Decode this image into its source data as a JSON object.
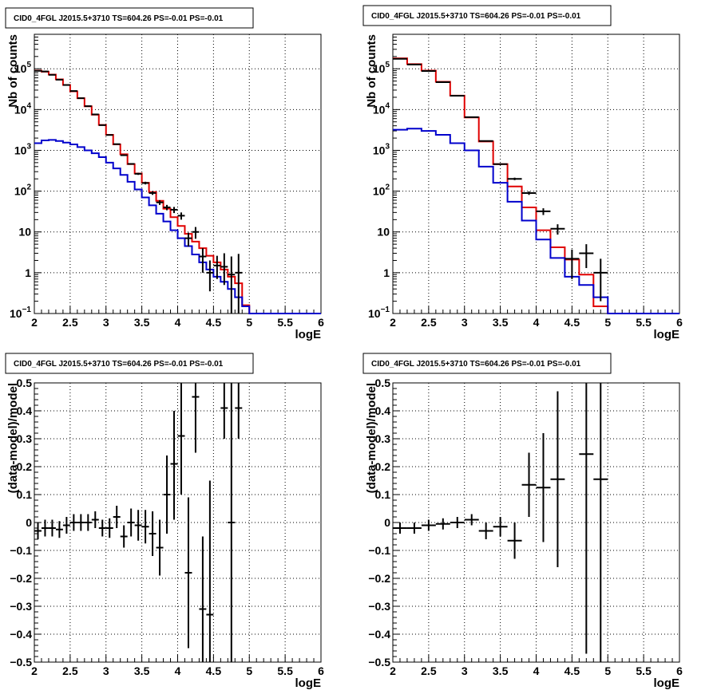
{
  "colors": {
    "data": "#000000",
    "model_total": "#e00000",
    "model_component": "#0000cc",
    "grid": "#000000"
  },
  "chart_data": [
    {
      "type": "line",
      "panel": "top-left",
      "title": "CID0_4FGL J2015.5+3710 TS=604.26 PS=-0.01 PS=-0.01",
      "xlabel": "logE",
      "ylabel": "Nb of counts",
      "xlim": [
        2,
        6
      ],
      "ylim": [
        0.1,
        700000
      ],
      "yscale": "log",
      "grid": true,
      "xticks": [
        "2",
        "2.5",
        "3",
        "3.5",
        "4",
        "4.5",
        "5",
        "5.5",
        "6"
      ],
      "yticks": [
        {
          "v": 0.1,
          "mant": "10",
          "exp": "−1"
        },
        {
          "v": 1,
          "mant": "1",
          "exp": ""
        },
        {
          "v": 10,
          "mant": "10",
          "exp": ""
        },
        {
          "v": 100,
          "mant": "10",
          "exp": "2"
        },
        {
          "v": 1000,
          "mant": "10",
          "exp": "3"
        },
        {
          "v": 10000,
          "mant": "10",
          "exp": "4"
        },
        {
          "v": 100000,
          "mant": "10",
          "exp": "5"
        }
      ],
      "bin_edges": [
        2.0,
        2.1,
        2.2,
        2.3,
        2.4,
        2.5,
        2.6,
        2.7,
        2.8,
        2.9,
        3.0,
        3.1,
        3.2,
        3.3,
        3.4,
        3.5,
        3.6,
        3.7,
        3.8,
        3.9,
        4.0,
        4.1,
        4.2,
        4.3,
        4.4,
        4.5,
        4.6,
        4.7,
        4.8,
        4.9,
        5.0,
        5.1,
        5.2,
        5.3,
        5.4,
        5.5,
        5.6,
        5.7,
        5.8,
        5.9,
        6.0
      ],
      "series": [
        {
          "role": "model_total",
          "values": [
            90000,
            85000,
            72000,
            55000,
            40000,
            28000,
            19000,
            12000,
            7500,
            4200,
            2400,
            1400,
            800,
            460,
            270,
            160,
            95,
            58,
            37,
            23,
            14,
            9,
            5.8,
            4.0,
            2.6,
            1.8,
            1.2,
            0.8,
            0.55,
            0.16,
            0.1,
            0.1,
            0.1,
            0.1,
            0.1,
            0.1,
            0.1,
            0.1,
            0.1,
            0.1
          ]
        },
        {
          "role": "model_component",
          "values": [
            1500,
            1750,
            1800,
            1700,
            1550,
            1400,
            1200,
            1000,
            850,
            680,
            500,
            360,
            250,
            170,
            110,
            70,
            45,
            28,
            18,
            11,
            7,
            4.5,
            2.8,
            1.8,
            1.2,
            0.8,
            0.6,
            0.4,
            0.25,
            0.15,
            0.1,
            0.1,
            0.1,
            0.1,
            0.1,
            0.1,
            0.1,
            0.1,
            0.1,
            0.1
          ]
        }
      ],
      "points": [
        {
          "x": 2.05,
          "y": 89000,
          "lo": 88000,
          "hi": 90000
        },
        {
          "x": 2.15,
          "y": 86000,
          "lo": 85000,
          "hi": 87000
        },
        {
          "x": 2.25,
          "y": 71000,
          "lo": 70000,
          "hi": 72000
        },
        {
          "x": 2.35,
          "y": 54000,
          "lo": 53000,
          "hi": 55000
        },
        {
          "x": 2.45,
          "y": 40000,
          "lo": 39500,
          "hi": 40500
        },
        {
          "x": 2.55,
          "y": 28500,
          "lo": 28000,
          "hi": 29000
        },
        {
          "x": 2.65,
          "y": 19000,
          "lo": 18700,
          "hi": 19300
        },
        {
          "x": 2.75,
          "y": 12100,
          "lo": 11900,
          "hi": 12300
        },
        {
          "x": 2.85,
          "y": 7600,
          "lo": 7450,
          "hi": 7750
        },
        {
          "x": 2.95,
          "y": 4150,
          "lo": 4050,
          "hi": 4250
        },
        {
          "x": 3.05,
          "y": 2380,
          "lo": 2300,
          "hi": 2460
        },
        {
          "x": 3.15,
          "y": 1420,
          "lo": 1380,
          "hi": 1460
        },
        {
          "x": 3.25,
          "y": 760,
          "lo": 730,
          "hi": 790
        },
        {
          "x": 3.35,
          "y": 465,
          "lo": 445,
          "hi": 485
        },
        {
          "x": 3.45,
          "y": 266,
          "lo": 250,
          "hi": 282
        },
        {
          "x": 3.55,
          "y": 158,
          "lo": 146,
          "hi": 170
        },
        {
          "x": 3.65,
          "y": 90,
          "lo": 81,
          "hi": 99
        },
        {
          "x": 3.75,
          "y": 53,
          "lo": 46,
          "hi": 60
        },
        {
          "x": 3.85,
          "y": 40,
          "lo": 34,
          "hi": 46
        },
        {
          "x": 3.95,
          "y": 35,
          "lo": 29,
          "hi": 41
        },
        {
          "x": 4.05,
          "y": 25,
          "lo": 20,
          "hi": 30
        },
        {
          "x": 4.15,
          "y": 7,
          "lo": 4.4,
          "hi": 9.6
        },
        {
          "x": 4.25,
          "y": 10,
          "lo": 6.8,
          "hi": 13.2
        },
        {
          "x": 4.35,
          "y": 2.5,
          "lo": 1.0,
          "hi": 4.0
        },
        {
          "x": 4.45,
          "y": 1.0,
          "lo": 0.35,
          "hi": 2.0
        },
        {
          "x": 4.55,
          "y": 1.5,
          "lo": 0.7,
          "hi": 2.6
        },
        {
          "x": 4.65,
          "y": 1.4,
          "lo": 0.5,
          "hi": 3.0
        },
        {
          "x": 4.75,
          "y": 0.9,
          "lo": 0.1,
          "hi": 2.5
        },
        {
          "x": 4.85,
          "y": 1.0,
          "lo": 0.1,
          "hi": 2.9
        }
      ]
    },
    {
      "type": "line",
      "panel": "top-right",
      "title": "CID0_4FGL J2015.5+3710 TS=604.26 PS=-0.01 PS=-0.01",
      "xlabel": "logE",
      "ylabel": "Nb of counts",
      "xlim": [
        2,
        6
      ],
      "ylim": [
        0.1,
        700000
      ],
      "yscale": "log",
      "grid": true,
      "xticks": [
        "2",
        "2.5",
        "3",
        "3.5",
        "4",
        "4.5",
        "5",
        "5.5",
        "6"
      ],
      "yticks": [
        {
          "v": 0.1,
          "mant": "10",
          "exp": "−1"
        },
        {
          "v": 1,
          "mant": "1",
          "exp": ""
        },
        {
          "v": 10,
          "mant": "10",
          "exp": ""
        },
        {
          "v": 100,
          "mant": "10",
          "exp": "2"
        },
        {
          "v": 1000,
          "mant": "10",
          "exp": "3"
        },
        {
          "v": 10000,
          "mant": "10",
          "exp": "4"
        },
        {
          "v": 100000,
          "mant": "10",
          "exp": "5"
        }
      ],
      "bin_edges": [
        2.0,
        2.2,
        2.4,
        2.6,
        2.8,
        3.0,
        3.2,
        3.4,
        3.6,
        3.8,
        4.0,
        4.2,
        4.4,
        4.6,
        4.8,
        5.0,
        5.2,
        5.4,
        5.6,
        5.8,
        6.0
      ],
      "series": [
        {
          "role": "model_total",
          "values": [
            180000,
            130000,
            90000,
            48000,
            22000,
            6400,
            1650,
            460,
            130,
            40,
            11,
            4.2,
            2.1,
            0.9,
            0.15,
            0.1,
            0.1,
            0.1,
            0.1,
            0.1
          ]
        },
        {
          "role": "model_component",
          "values": [
            3200,
            3400,
            3000,
            2400,
            1500,
            1000,
            400,
            160,
            55,
            19,
            6.5,
            2.3,
            0.8,
            0.5,
            0.25,
            0.1,
            0.1,
            0.1,
            0.1,
            0.1
          ]
        }
      ],
      "points": [
        {
          "x": 2.1,
          "y": 175000,
          "lo": 174000,
          "hi": 176000
        },
        {
          "x": 2.3,
          "y": 127000,
          "lo": 126000,
          "hi": 128000
        },
        {
          "x": 2.5,
          "y": 88000,
          "lo": 87500,
          "hi": 88500
        },
        {
          "x": 2.7,
          "y": 47000,
          "lo": 46600,
          "hi": 47400
        },
        {
          "x": 2.9,
          "y": 21800,
          "lo": 21500,
          "hi": 22100
        },
        {
          "x": 3.1,
          "y": 6500,
          "lo": 6350,
          "hi": 6650
        },
        {
          "x": 3.3,
          "y": 1700,
          "lo": 1650,
          "hi": 1750
        },
        {
          "x": 3.5,
          "y": 460,
          "lo": 440,
          "hi": 480
        },
        {
          "x": 3.7,
          "y": 200,
          "lo": 186,
          "hi": 214
        },
        {
          "x": 3.9,
          "y": 90,
          "lo": 81,
          "hi": 99
        },
        {
          "x": 4.1,
          "y": 32,
          "lo": 26,
          "hi": 38
        },
        {
          "x": 4.3,
          "y": 12,
          "lo": 8.6,
          "hi": 15.4
        },
        {
          "x": 4.5,
          "y": 2.2,
          "lo": 0.7,
          "hi": 3.7
        },
        {
          "x": 4.7,
          "y": 3.0,
          "lo": 1.3,
          "hi": 5.0
        },
        {
          "x": 4.9,
          "y": 1.0,
          "lo": 0.2,
          "hi": 2.2
        }
      ]
    },
    {
      "type": "scatter",
      "panel": "bottom-left",
      "title": "CID0_4FGL J2015.5+3710 TS=604.26 PS=-0.01 PS=-0.01",
      "xlabel": "logE",
      "ylabel": "(data-model)/model",
      "xlim": [
        2,
        6
      ],
      "ylim": [
        -0.5,
        0.5
      ],
      "yscale": "linear",
      "grid": true,
      "xticks": [
        "2",
        "2.5",
        "3",
        "3.5",
        "4",
        "4.5",
        "5",
        "5.5",
        "6"
      ],
      "yticks": [
        "−0.5",
        "−0.4",
        "−0.3",
        "−0.2",
        "−0.1",
        "0",
        "0.1",
        "0.2",
        "0.3",
        "0.4",
        "0.5"
      ],
      "bin_width": 0.1,
      "points": [
        {
          "x": 2.05,
          "y": -0.03,
          "lo": -0.06,
          "hi": 0.0
        },
        {
          "x": 2.15,
          "y": -0.02,
          "lo": -0.05,
          "hi": 0.01
        },
        {
          "x": 2.25,
          "y": -0.02,
          "lo": -0.05,
          "hi": 0.01
        },
        {
          "x": 2.35,
          "y": -0.025,
          "lo": -0.055,
          "hi": 0.005
        },
        {
          "x": 2.45,
          "y": -0.01,
          "lo": -0.04,
          "hi": 0.02
        },
        {
          "x": 2.55,
          "y": 0.0,
          "lo": -0.03,
          "hi": 0.03
        },
        {
          "x": 2.65,
          "y": 0.0,
          "lo": -0.03,
          "hi": 0.03
        },
        {
          "x": 2.75,
          "y": 0.0,
          "lo": -0.03,
          "hi": 0.03
        },
        {
          "x": 2.85,
          "y": 0.01,
          "lo": -0.02,
          "hi": 0.04
        },
        {
          "x": 2.95,
          "y": -0.02,
          "lo": -0.05,
          "hi": 0.01
        },
        {
          "x": 3.05,
          "y": -0.02,
          "lo": -0.055,
          "hi": 0.015
        },
        {
          "x": 3.15,
          "y": 0.02,
          "lo": -0.02,
          "hi": 0.06
        },
        {
          "x": 3.25,
          "y": -0.05,
          "lo": -0.09,
          "hi": -0.01
        },
        {
          "x": 3.35,
          "y": 0.0,
          "lo": -0.05,
          "hi": 0.05
        },
        {
          "x": 3.45,
          "y": -0.01,
          "lo": -0.065,
          "hi": 0.045
        },
        {
          "x": 3.55,
          "y": -0.015,
          "lo": -0.075,
          "hi": 0.045
        },
        {
          "x": 3.65,
          "y": -0.04,
          "lo": -0.12,
          "hi": 0.04
        },
        {
          "x": 3.75,
          "y": -0.09,
          "lo": -0.19,
          "hi": 0.01
        },
        {
          "x": 3.85,
          "y": 0.1,
          "lo": -0.04,
          "hi": 0.24
        },
        {
          "x": 3.95,
          "y": 0.21,
          "lo": 0.01,
          "hi": 0.4
        },
        {
          "x": 4.05,
          "y": 0.31,
          "lo": 0.1,
          "hi": 0.52
        },
        {
          "x": 4.15,
          "y": -0.18,
          "lo": -0.45,
          "hi": 0.09
        },
        {
          "x": 4.25,
          "y": 0.45,
          "lo": 0.25,
          "hi": 0.55
        },
        {
          "x": 4.35,
          "y": -0.31,
          "lo": -0.55,
          "hi": -0.05
        },
        {
          "x": 4.45,
          "y": -0.33,
          "lo": -0.55,
          "hi": 0.15
        },
        {
          "x": 4.65,
          "y": 0.41,
          "lo": 0.3,
          "hi": 0.55
        },
        {
          "x": 4.75,
          "y": 0.0,
          "lo": -0.55,
          "hi": 0.55
        },
        {
          "x": 4.85,
          "y": 0.41,
          "lo": 0.3,
          "hi": 0.55
        }
      ]
    },
    {
      "type": "scatter",
      "panel": "bottom-right",
      "title": "CID0_4FGL J2015.5+3710 TS=604.26 PS=-0.01 PS=-0.01",
      "xlabel": "logE",
      "ylabel": "(data-model)/model",
      "xlim": [
        2,
        6
      ],
      "ylim": [
        -0.5,
        0.5
      ],
      "yscale": "linear",
      "grid": true,
      "xticks": [
        "2",
        "2.5",
        "3",
        "3.5",
        "4",
        "4.5",
        "5",
        "5.5",
        "6"
      ],
      "yticks": [
        "−0.5",
        "−0.4",
        "−0.3",
        "−0.2",
        "−0.1",
        "0",
        "0.1",
        "0.2",
        "0.3",
        "0.4",
        "0.5"
      ],
      "bin_width": 0.2,
      "points": [
        {
          "x": 2.1,
          "y": -0.02,
          "lo": -0.04,
          "hi": 0.0
        },
        {
          "x": 2.3,
          "y": -0.02,
          "lo": -0.04,
          "hi": 0.0
        },
        {
          "x": 2.5,
          "y": -0.01,
          "lo": -0.03,
          "hi": 0.01
        },
        {
          "x": 2.7,
          "y": -0.005,
          "lo": -0.025,
          "hi": 0.015
        },
        {
          "x": 2.9,
          "y": 0.0,
          "lo": -0.02,
          "hi": 0.02
        },
        {
          "x": 3.1,
          "y": 0.01,
          "lo": -0.01,
          "hi": 0.03
        },
        {
          "x": 3.3,
          "y": -0.03,
          "lo": -0.06,
          "hi": 0.0
        },
        {
          "x": 3.5,
          "y": -0.015,
          "lo": -0.05,
          "hi": 0.02
        },
        {
          "x": 3.7,
          "y": -0.065,
          "lo": -0.13,
          "hi": 0.0
        },
        {
          "x": 3.9,
          "y": 0.135,
          "lo": 0.02,
          "hi": 0.25
        },
        {
          "x": 4.1,
          "y": 0.125,
          "lo": -0.07,
          "hi": 0.32
        },
        {
          "x": 4.3,
          "y": 0.155,
          "lo": -0.16,
          "hi": 0.47
        },
        {
          "x": 4.7,
          "y": 0.245,
          "lo": -0.47,
          "hi": 0.55
        },
        {
          "x": 4.9,
          "y": 0.155,
          "lo": -0.5,
          "hi": 0.55
        }
      ]
    }
  ]
}
